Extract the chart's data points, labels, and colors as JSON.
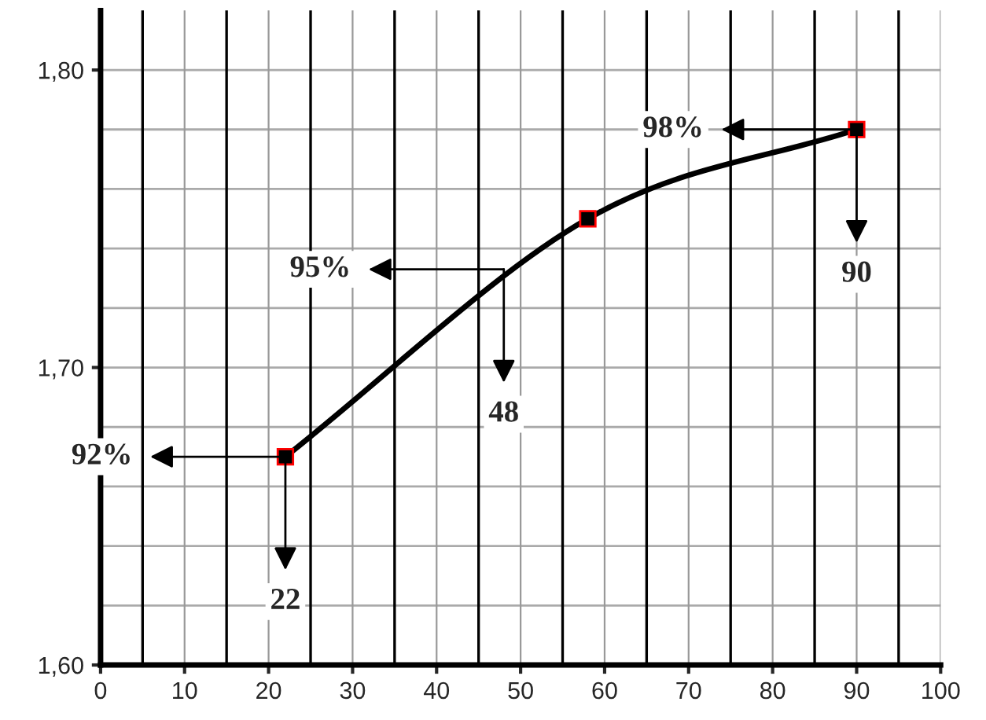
{
  "chart_data": {
    "type": "line",
    "x": [
      22,
      58,
      90
    ],
    "series": [
      {
        "color": "#000000",
        "values": [
          1.67,
          1.75,
          1.78
        ]
      }
    ],
    "marker": "square",
    "line_style": "solid",
    "grid": true,
    "legend": false,
    "xlim": [
      0,
      100
    ],
    "xticks": [
      0,
      10,
      20,
      30,
      40,
      50,
      60,
      70,
      80,
      90,
      100
    ],
    "ylim": [
      1.6,
      1.82
    ],
    "yticks": [
      {
        "value": 1.6,
        "label": "1,60"
      },
      {
        "value": 1.7,
        "label": "1,70"
      },
      {
        "value": 1.8,
        "label": "1,80"
      }
    ],
    "annotations": [
      "92%",
      {
        "text": "22",
        "x": 22,
        "y": 1.67
      },
      "95%",
      {
        "text": "48",
        "x": 48,
        "y": 1.733
      },
      "98%",
      {
        "text": "90",
        "x": 90,
        "y": 1.78
      }
    ]
  }
}
